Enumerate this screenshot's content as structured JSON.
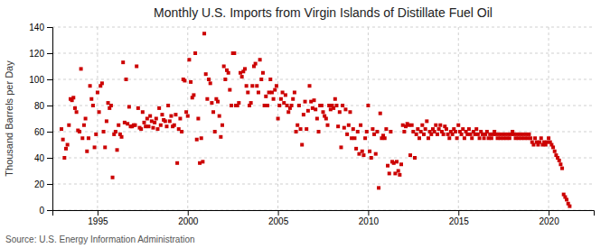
{
  "chart_data": {
    "type": "scatter",
    "title": "Monthly U.S. Imports from Virgin Islands of Distillate Fuel Oil",
    "ylabel": "Thousand Barrels per Day",
    "annotations": [
      "Source: U.S. Energy Information Administration"
    ],
    "color": "#cc0000",
    "marker": "square",
    "grid": true,
    "xlim": [
      1992.5,
      2022.5
    ],
    "xticks": [
      1995,
      2000,
      2005,
      2010,
      2015,
      2020
    ],
    "ylim": [
      0,
      140
    ],
    "yticks": [
      0,
      20,
      40,
      60,
      80,
      100,
      120,
      140
    ],
    "x": [
      1993.0,
      1993.083,
      1993.167,
      1993.25,
      1993.333,
      1993.417,
      1993.5,
      1993.583,
      1993.667,
      1993.75,
      1993.833,
      1993.917,
      1994.0,
      1994.083,
      1994.167,
      1994.25,
      1994.333,
      1994.417,
      1994.5,
      1994.583,
      1994.667,
      1994.75,
      1994.833,
      1994.917,
      1995.0,
      1995.083,
      1995.167,
      1995.25,
      1995.333,
      1995.417,
      1995.5,
      1995.583,
      1995.667,
      1995.75,
      1995.833,
      1995.917,
      1996.0,
      1996.083,
      1996.167,
      1996.25,
      1996.333,
      1996.417,
      1996.5,
      1996.583,
      1996.667,
      1996.75,
      1996.833,
      1996.917,
      1997.0,
      1997.083,
      1997.167,
      1997.25,
      1997.333,
      1997.417,
      1997.5,
      1997.583,
      1997.667,
      1997.75,
      1997.833,
      1997.917,
      1998.0,
      1998.083,
      1998.167,
      1998.25,
      1998.333,
      1998.417,
      1998.5,
      1998.583,
      1998.667,
      1998.75,
      1998.833,
      1998.917,
      1999.0,
      1999.083,
      1999.167,
      1999.25,
      1999.333,
      1999.417,
      1999.5,
      1999.583,
      1999.667,
      1999.75,
      1999.833,
      1999.917,
      2000.0,
      2000.083,
      2000.167,
      2000.25,
      2000.333,
      2000.417,
      2000.5,
      2000.583,
      2000.667,
      2000.75,
      2000.833,
      2000.917,
      2001.0,
      2001.083,
      2001.167,
      2001.25,
      2001.333,
      2001.417,
      2001.5,
      2001.583,
      2001.667,
      2001.75,
      2001.833,
      2001.917,
      2002.0,
      2002.083,
      2002.167,
      2002.25,
      2002.333,
      2002.417,
      2002.5,
      2002.583,
      2002.667,
      2002.75,
      2002.833,
      2002.917,
      2003.0,
      2003.083,
      2003.167,
      2003.25,
      2003.333,
      2003.417,
      2003.5,
      2003.583,
      2003.667,
      2003.75,
      2003.833,
      2003.917,
      2004.0,
      2004.083,
      2004.167,
      2004.25,
      2004.333,
      2004.417,
      2004.5,
      2004.583,
      2004.667,
      2004.75,
      2004.833,
      2004.917,
      2005.0,
      2005.083,
      2005.167,
      2005.25,
      2005.333,
      2005.417,
      2005.5,
      2005.583,
      2005.667,
      2005.75,
      2005.833,
      2005.917,
      2006.0,
      2006.083,
      2006.167,
      2006.25,
      2006.333,
      2006.417,
      2006.5,
      2006.583,
      2006.667,
      2006.75,
      2006.833,
      2006.917,
      2007.0,
      2007.083,
      2007.167,
      2007.25,
      2007.333,
      2007.417,
      2007.5,
      2007.583,
      2007.667,
      2007.75,
      2007.833,
      2007.917,
      2008.0,
      2008.083,
      2008.167,
      2008.25,
      2008.333,
      2008.417,
      2008.5,
      2008.583,
      2008.667,
      2008.75,
      2008.833,
      2008.917,
      2009.0,
      2009.083,
      2009.167,
      2009.25,
      2009.333,
      2009.417,
      2009.5,
      2009.583,
      2009.667,
      2009.75,
      2009.833,
      2009.917,
      2010.0,
      2010.083,
      2010.167,
      2010.25,
      2010.333,
      2010.417,
      2010.5,
      2010.583,
      2010.667,
      2010.75,
      2010.833,
      2010.917,
      2011.0,
      2011.083,
      2011.167,
      2011.25,
      2011.333,
      2011.417,
      2011.5,
      2011.583,
      2011.667,
      2011.75,
      2011.833,
      2011.917,
      2012.0,
      2012.083,
      2012.167,
      2012.25,
      2012.333,
      2012.417,
      2012.5,
      2012.583,
      2012.667,
      2012.75,
      2012.833,
      2012.917,
      2013.0,
      2013.083,
      2013.167,
      2013.25,
      2013.333,
      2013.417,
      2013.5,
      2013.583,
      2013.667,
      2013.75,
      2013.833,
      2013.917,
      2014.0,
      2014.083,
      2014.167,
      2014.25,
      2014.333,
      2014.417,
      2014.5,
      2014.583,
      2014.667,
      2014.75,
      2014.833,
      2014.917,
      2015.0,
      2015.083,
      2015.167,
      2015.25,
      2015.333,
      2015.417,
      2015.5,
      2015.583,
      2015.667,
      2015.75,
      2015.833,
      2015.917,
      2016.0,
      2016.083,
      2016.167,
      2016.25,
      2016.333,
      2016.417,
      2016.5,
      2016.583,
      2016.667,
      2016.75,
      2016.833,
      2016.917,
      2017.0,
      2017.083,
      2017.167,
      2017.25,
      2017.333,
      2017.417,
      2017.5,
      2017.583,
      2017.667,
      2017.75,
      2017.833,
      2017.917,
      2018.0,
      2018.083,
      2018.167,
      2018.25,
      2018.333,
      2018.417,
      2018.5,
      2018.583,
      2018.667,
      2018.75,
      2018.833,
      2018.917,
      2019.0,
      2019.083,
      2019.167,
      2019.25,
      2019.333,
      2019.417,
      2019.5,
      2019.583,
      2019.667,
      2019.75,
      2019.833,
      2019.917,
      2020.0,
      2020.083,
      2020.167,
      2020.25,
      2020.333,
      2020.417,
      2020.5,
      2020.583,
      2020.667,
      2020.75,
      2020.833,
      2020.917,
      2021.0,
      2021.083,
      2021.167
    ],
    "values": [
      62,
      54,
      40,
      47,
      50,
      65,
      85,
      84,
      86,
      78,
      75,
      61,
      60,
      108,
      55,
      65,
      70,
      45,
      55,
      95,
      85,
      80,
      48,
      58,
      90,
      75,
      95,
      97,
      60,
      48,
      68,
      82,
      78,
      80,
      25,
      58,
      60,
      46,
      65,
      58,
      56,
      113,
      67,
      100,
      66,
      79,
      64,
      64,
      65,
      65,
      110,
      78,
      63,
      62,
      75,
      67,
      64,
      70,
      64,
      72,
      68,
      63,
      67,
      70,
      62,
      78,
      65,
      73,
      69,
      68,
      64,
      80,
      68,
      72,
      64,
      65,
      73,
      36,
      62,
      70,
      60,
      100,
      99,
      75,
      72,
      115,
      98,
      86,
      88,
      120,
      54,
      70,
      36,
      55,
      37,
      135,
      104,
      85,
      100,
      97,
      82,
      75,
      60,
      85,
      83,
      72,
      56,
      65,
      110,
      100,
      107,
      105,
      92,
      80,
      120,
      120,
      80,
      80,
      82,
      105,
      102,
      106,
      108,
      95,
      90,
      80,
      82,
      95,
      110,
      112,
      95,
      90,
      115,
      100,
      105,
      80,
      87,
      80,
      90,
      100,
      90,
      85,
      92,
      95,
      70,
      80,
      85,
      90,
      82,
      88,
      80,
      75,
      78,
      80,
      85,
      90,
      60,
      65,
      80,
      62,
      50,
      73,
      83,
      62,
      76,
      95,
      83,
      78,
      84,
      77,
      70,
      60,
      80,
      80,
      75,
      72,
      70,
      65,
      80,
      77,
      80,
      78,
      85,
      80,
      64,
      75,
      48,
      80,
      63,
      77,
      58,
      65,
      75,
      55,
      62,
      55,
      47,
      60,
      43,
      65,
      45,
      42,
      55,
      60,
      80,
      45,
      40,
      62,
      58,
      43,
      60,
      17,
      74,
      55,
      57,
      55,
      62,
      34,
      28,
      60,
      37,
      36,
      28,
      37,
      30,
      27,
      35,
      65,
      60,
      64,
      66,
      65,
      42,
      65,
      60,
      40,
      58,
      62,
      55,
      60,
      65,
      58,
      62,
      68,
      55,
      60,
      58,
      62,
      60,
      65,
      58,
      62,
      65,
      60,
      58,
      64,
      62,
      58,
      55,
      60,
      58,
      62,
      60,
      55,
      65,
      60,
      58,
      62,
      55,
      60,
      58,
      62,
      58,
      55,
      60,
      58,
      62,
      58,
      55,
      60,
      58,
      55,
      58,
      60,
      55,
      58,
      55,
      58,
      60,
      58,
      55,
      58,
      55,
      58,
      55,
      58,
      55,
      58,
      55,
      58,
      60,
      58,
      55,
      58,
      55,
      58,
      55,
      58,
      55,
      58,
      55,
      58,
      55,
      52,
      50,
      55,
      52,
      50,
      52,
      55,
      50,
      52,
      50,
      52,
      55,
      52,
      50,
      48,
      45,
      42,
      40,
      38,
      35,
      32,
      12,
      10,
      8,
      5,
      3
    ]
  }
}
